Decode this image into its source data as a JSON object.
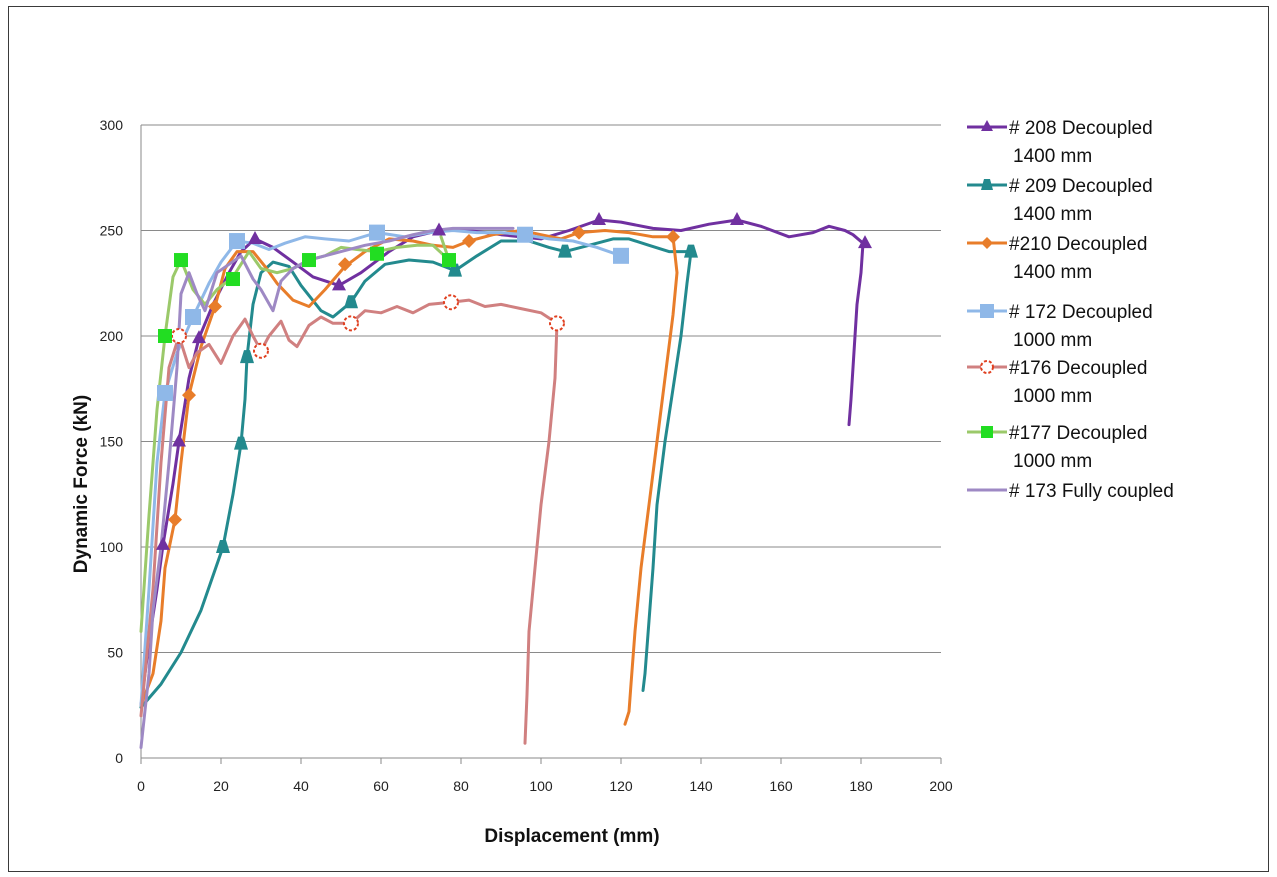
{
  "chart_data": {
    "type": "line",
    "title": "",
    "xlabel": "Displacement (mm)",
    "ylabel": "Dynamic Force (kN)",
    "xlim": [
      0,
      200
    ],
    "ylim": [
      0,
      300
    ],
    "x_ticks": [
      "0",
      "20",
      "40",
      "60",
      "80",
      "100",
      "120",
      "140",
      "160",
      "180",
      "200"
    ],
    "y_ticks": [
      "0",
      "50",
      "100",
      "150",
      "200",
      "250",
      "300"
    ],
    "grid": "horizontal",
    "legend_position": "right",
    "series": [
      {
        "name": "# 208 Decoupled 1400 mm",
        "legend_lines": [
          "# 208 Decoupled",
          "1400 mm"
        ],
        "color": "#7030a0",
        "marker": "triangle",
        "points": [
          [
            0,
            25
          ],
          [
            2,
            55
          ],
          [
            4,
            80
          ],
          [
            5.5,
            101
          ],
          [
            8,
            130
          ],
          [
            9.5,
            150
          ],
          [
            12,
            180
          ],
          [
            14.5,
            199
          ],
          [
            18,
            215
          ],
          [
            22,
            230
          ],
          [
            25,
            240
          ],
          [
            28.5,
            246
          ],
          [
            33,
            242
          ],
          [
            38,
            235
          ],
          [
            43,
            228
          ],
          [
            49.5,
            224
          ],
          [
            55,
            230
          ],
          [
            62,
            240
          ],
          [
            68,
            247
          ],
          [
            74.5,
            250
          ],
          [
            82,
            250
          ],
          [
            90,
            248
          ],
          [
            100,
            246
          ],
          [
            107,
            250
          ],
          [
            114.5,
            255
          ],
          [
            120,
            254
          ],
          [
            128,
            251
          ],
          [
            135,
            250
          ],
          [
            142,
            253
          ],
          [
            149,
            255
          ],
          [
            155,
            252
          ],
          [
            162,
            247
          ],
          [
            168,
            249
          ],
          [
            172,
            252
          ],
          [
            176,
            250
          ],
          [
            178,
            248
          ],
          [
            180.5,
            244
          ],
          [
            180,
            230
          ],
          [
            179,
            215
          ],
          [
            178.5,
            200
          ],
          [
            178,
            185
          ],
          [
            177.5,
            170
          ],
          [
            177,
            158
          ]
        ],
        "markers": [
          [
            5.5,
            101
          ],
          [
            9.5,
            150
          ],
          [
            14.5,
            199
          ],
          [
            28.5,
            246
          ],
          [
            49.5,
            224
          ],
          [
            74.5,
            250
          ],
          [
            114.5,
            255
          ],
          [
            149,
            255
          ],
          [
            181,
            244
          ]
        ]
      },
      {
        "name": "# 209 Decoupled 1400 mm",
        "legend_lines": [
          "# 209 Decoupled",
          "1400 mm"
        ],
        "color": "#238a8e",
        "marker": "trapezoid",
        "points": [
          [
            0,
            24
          ],
          [
            5,
            35
          ],
          [
            10,
            50
          ],
          [
            15,
            70
          ],
          [
            20.5,
            100
          ],
          [
            23,
            125
          ],
          [
            25,
            149
          ],
          [
            26,
            170
          ],
          [
            26.5,
            190
          ],
          [
            28,
            215
          ],
          [
            30,
            230
          ],
          [
            33,
            235
          ],
          [
            37,
            233
          ],
          [
            40,
            224
          ],
          [
            45,
            212
          ],
          [
            48,
            209
          ],
          [
            52.5,
            216
          ],
          [
            56,
            226
          ],
          [
            61,
            234
          ],
          [
            67,
            236
          ],
          [
            73,
            235
          ],
          [
            78.5,
            231
          ],
          [
            84,
            238
          ],
          [
            90,
            245
          ],
          [
            97,
            245
          ],
          [
            102,
            242
          ],
          [
            106,
            240
          ],
          [
            112,
            243
          ],
          [
            118,
            246
          ],
          [
            122,
            246
          ],
          [
            127,
            243
          ],
          [
            132,
            240
          ],
          [
            137.5,
            240
          ],
          [
            136.5,
            225
          ],
          [
            135,
            200
          ],
          [
            133,
            175
          ],
          [
            131,
            150
          ],
          [
            129,
            120
          ],
          [
            128,
            90
          ],
          [
            127,
            65
          ],
          [
            126,
            40
          ],
          [
            125.5,
            32
          ]
        ],
        "markers": [
          [
            20.5,
            100
          ],
          [
            25,
            149
          ],
          [
            26.5,
            190
          ],
          [
            52.5,
            216
          ],
          [
            78.5,
            231
          ],
          [
            106,
            240
          ],
          [
            137.5,
            240
          ]
        ]
      },
      {
        "name": "#210 Decoupled 1400 mm",
        "legend_lines": [
          "#210 Decoupled",
          "1400 mm"
        ],
        "color": "#e87d2a",
        "marker": "diamond",
        "points": [
          [
            0,
            25
          ],
          [
            3,
            40
          ],
          [
            5,
            65
          ],
          [
            6,
            90
          ],
          [
            8.5,
            113
          ],
          [
            10,
            140
          ],
          [
            12,
            172
          ],
          [
            15,
            195
          ],
          [
            18.5,
            214
          ],
          [
            21,
            232
          ],
          [
            24,
            240
          ],
          [
            28,
            240
          ],
          [
            31,
            233
          ],
          [
            34,
            225
          ],
          [
            38,
            217
          ],
          [
            42,
            214
          ],
          [
            46,
            222
          ],
          [
            51,
            233
          ],
          [
            56,
            240
          ],
          [
            62,
            246
          ],
          [
            68,
            245
          ],
          [
            73,
            243
          ],
          [
            78,
            242
          ],
          [
            82,
            245
          ],
          [
            88,
            248
          ],
          [
            95,
            250
          ],
          [
            100,
            248
          ],
          [
            105,
            246
          ],
          [
            109.5,
            249
          ],
          [
            116,
            250
          ],
          [
            122,
            249
          ],
          [
            128,
            247
          ],
          [
            133,
            247
          ],
          [
            134,
            230
          ],
          [
            133,
            210
          ],
          [
            131,
            180
          ],
          [
            129,
            150
          ],
          [
            127,
            120
          ],
          [
            125,
            90
          ],
          [
            123.5,
            60
          ],
          [
            122.5,
            35
          ],
          [
            122,
            22
          ],
          [
            121,
            16
          ]
        ],
        "markers": [
          [
            8.5,
            113
          ],
          [
            12,
            172
          ],
          [
            18.5,
            214
          ],
          [
            51,
            234
          ],
          [
            82,
            245
          ],
          [
            109.5,
            249
          ],
          [
            133,
            247
          ]
        ]
      },
      {
        "name": "# 172 Decoupled 1000 mm",
        "legend_lines": [
          "# 172 Decoupled",
          "1000 mm"
        ],
        "color": "#8fb8e8",
        "marker": "square",
        "points": [
          [
            0,
            25
          ],
          [
            2,
            80
          ],
          [
            4,
            140
          ],
          [
            6,
            173
          ],
          [
            9,
            192
          ],
          [
            13,
            209
          ],
          [
            17,
            225
          ],
          [
            20,
            235
          ],
          [
            24,
            245
          ],
          [
            28,
            244
          ],
          [
            32,
            241
          ],
          [
            36,
            244
          ],
          [
            41,
            247
          ],
          [
            46,
            246
          ],
          [
            52,
            245
          ],
          [
            59,
            249
          ],
          [
            66,
            247
          ],
          [
            72,
            249
          ],
          [
            78,
            250
          ],
          [
            84,
            249
          ],
          [
            90,
            249
          ],
          [
            96,
            248
          ],
          [
            102,
            246
          ],
          [
            108,
            245
          ],
          [
            114,
            242
          ],
          [
            120,
            238
          ]
        ],
        "markers": [
          [
            6,
            173
          ],
          [
            13,
            209
          ],
          [
            24,
            245
          ],
          [
            59,
            249
          ],
          [
            96,
            248
          ],
          [
            120,
            238
          ]
        ]
      },
      {
        "name": "#176 Decoupled 1000 mm",
        "legend_lines": [
          "#176 Decoupled",
          "1000 mm"
        ],
        "color": "#d08080",
        "marker": "circle",
        "points": [
          [
            0,
            20
          ],
          [
            3,
            80
          ],
          [
            5,
            140
          ],
          [
            7,
            185
          ],
          [
            9.5,
            200
          ],
          [
            12,
            185
          ],
          [
            14,
            192
          ],
          [
            17,
            196
          ],
          [
            20,
            187
          ],
          [
            23,
            200
          ],
          [
            26,
            208
          ],
          [
            28,
            200
          ],
          [
            30,
            193
          ],
          [
            32,
            200
          ],
          [
            35,
            207
          ],
          [
            37,
            198
          ],
          [
            39,
            195
          ],
          [
            42,
            205
          ],
          [
            45,
            209
          ],
          [
            48,
            206
          ],
          [
            52.5,
            206
          ],
          [
            56,
            212
          ],
          [
            60,
            211
          ],
          [
            64,
            214
          ],
          [
            68,
            211
          ],
          [
            72,
            215
          ],
          [
            77.5,
            216
          ],
          [
            82,
            217
          ],
          [
            86,
            214
          ],
          [
            90,
            215
          ],
          [
            95,
            213
          ],
          [
            100,
            211
          ],
          [
            104,
            206
          ],
          [
            103.5,
            180
          ],
          [
            102,
            150
          ],
          [
            100,
            120
          ],
          [
            98.5,
            90
          ],
          [
            97,
            60
          ],
          [
            96.5,
            30
          ],
          [
            96,
            7
          ]
        ],
        "markers": [
          [
            9.5,
            200
          ],
          [
            30,
            193
          ],
          [
            52.5,
            206
          ],
          [
            77.5,
            216
          ],
          [
            104,
            206
          ]
        ]
      },
      {
        "name": "#177 Decoupled 1000 mm",
        "legend_lines": [
          "#177 Decoupled",
          "1000 mm"
        ],
        "color": "#9bc96a",
        "marker": "square-green",
        "markerColor": "#22dd22",
        "points": [
          [
            0,
            60
          ],
          [
            2,
            115
          ],
          [
            4,
            165
          ],
          [
            6,
            200
          ],
          [
            8,
            228
          ],
          [
            10,
            236
          ],
          [
            13,
            222
          ],
          [
            16,
            215
          ],
          [
            19,
            222
          ],
          [
            23,
            228
          ],
          [
            27,
            240
          ],
          [
            30,
            232
          ],
          [
            34,
            230
          ],
          [
            38,
            232
          ],
          [
            42,
            236
          ],
          [
            46,
            238
          ],
          [
            50,
            242
          ],
          [
            54,
            241
          ],
          [
            59,
            240
          ],
          [
            64,
            242
          ],
          [
            69,
            243
          ],
          [
            73,
            243
          ],
          [
            77,
            236
          ],
          [
            75,
            247
          ]
        ],
        "markers": [
          [
            6,
            200
          ],
          [
            10,
            236
          ],
          [
            23,
            227
          ],
          [
            42,
            236
          ],
          [
            59,
            239
          ],
          [
            77,
            236
          ]
        ]
      },
      {
        "name": "# 173 Fully coupled",
        "legend_lines": [
          "# 173 Fully coupled"
        ],
        "color": "#9e89c4",
        "marker": "none",
        "points": [
          [
            0,
            5
          ],
          [
            2,
            40
          ],
          [
            3,
            70
          ],
          [
            5,
            100
          ],
          [
            7,
            140
          ],
          [
            9,
            185
          ],
          [
            10,
            220
          ],
          [
            12,
            230
          ],
          [
            14,
            220
          ],
          [
            16,
            212
          ],
          [
            19,
            230
          ],
          [
            22,
            234
          ],
          [
            25,
            238
          ],
          [
            28,
            227
          ],
          [
            30,
            222
          ],
          [
            33,
            212
          ],
          [
            35,
            226
          ],
          [
            38,
            232
          ],
          [
            42,
            236
          ],
          [
            46,
            238
          ],
          [
            50,
            240
          ],
          [
            56,
            243
          ],
          [
            62,
            245
          ],
          [
            68,
            248
          ],
          [
            73,
            250
          ],
          [
            78,
            251
          ],
          [
            85,
            251
          ],
          [
            93,
            251
          ]
        ],
        "markers": []
      }
    ]
  }
}
